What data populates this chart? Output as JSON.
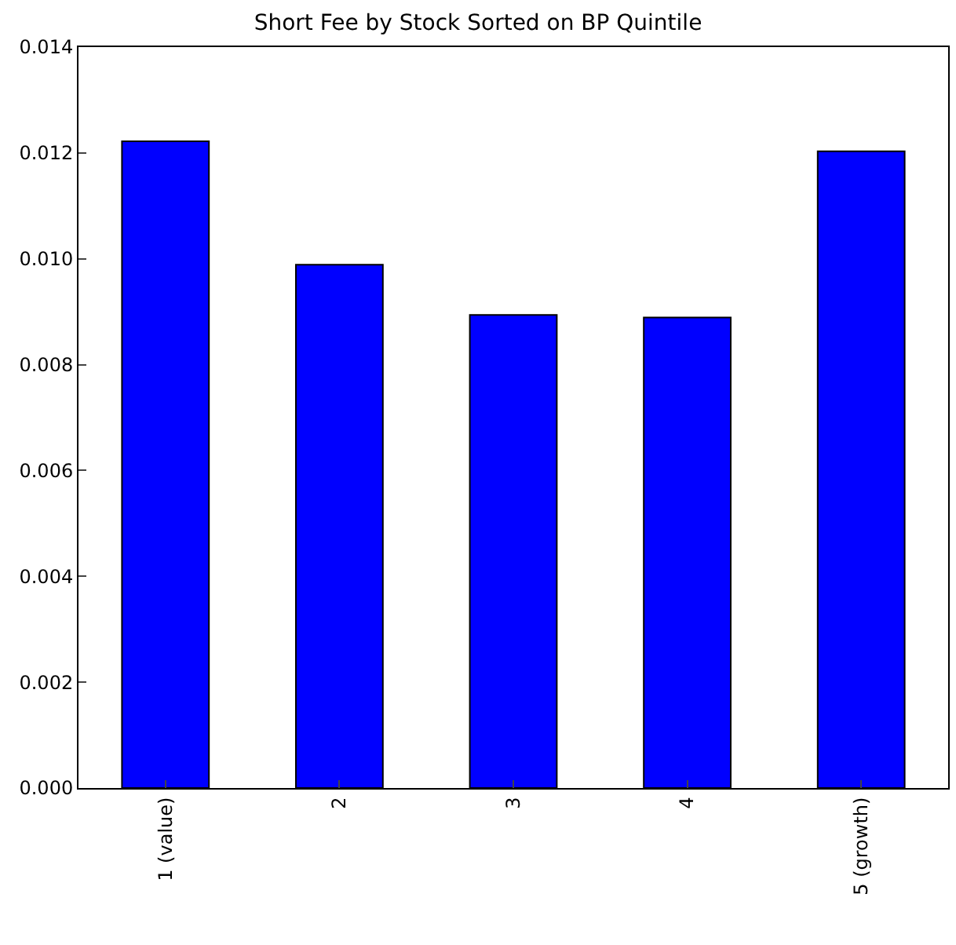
{
  "chart_data": {
    "type": "bar",
    "title": "Short Fee by Stock Sorted on BP Quintile",
    "categories": [
      "1 (value)",
      "2",
      "3",
      "4",
      "5 (growth)"
    ],
    "values": [
      0.01222,
      0.00989,
      0.00894,
      0.00889,
      0.01203
    ],
    "color": "#0000ff",
    "ylim": [
      0,
      0.014
    ],
    "yticks": [
      {
        "value": 0,
        "label": "0.000"
      },
      {
        "value": 0.002,
        "label": "0.002"
      },
      {
        "value": 0.004,
        "label": "0.004"
      },
      {
        "value": 0.006,
        "label": "0.006"
      },
      {
        "value": 0.008,
        "label": "0.008"
      },
      {
        "value": 0.01,
        "label": "0.010"
      },
      {
        "value": 0.012,
        "label": "0.012"
      },
      {
        "value": 0.014,
        "label": "0.014"
      }
    ],
    "data_labels": false
  }
}
